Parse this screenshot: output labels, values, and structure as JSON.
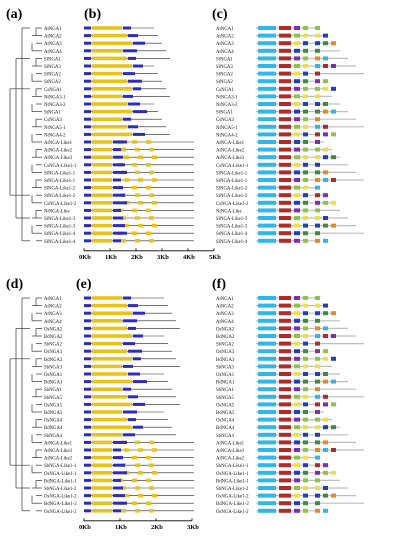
{
  "panel_labels": {
    "a": "(a)",
    "b": "(b)",
    "c": "(c)",
    "d": "(d)",
    "e": "(e)",
    "f": "(f)"
  },
  "colors": {
    "exon": "#e8c419",
    "utr": "#2c2cc4",
    "intron": "#222222",
    "tree": "#333333",
    "protein_bar": "#bdbdbd",
    "motifs": [
      "#2eb7e8",
      "#b02a2a",
      "#7a2fb5",
      "#8cc63f",
      "#f0e13a",
      "#1f3fbf",
      "#3c8c3c",
      "#e58a1f"
    ]
  },
  "top": {
    "genes": [
      "AtNGA1",
      "AtNGA2",
      "AtNGA3",
      "AtNGA4",
      "SlNGA1",
      "SlNGA3",
      "SlNGA2",
      "StNGA2",
      "CsNGA1",
      "NtNGA3-1",
      "NtNGA3-2",
      "StNGA1",
      "CsNGA3",
      "NtNGA5-1",
      "NtNGA4-2",
      "AtNGA-Like1",
      "AtNGA-Like2",
      "AtNGA-Like3",
      "CsNGA-Like1-1",
      "SlNGA-Like1-1",
      "StNGA-Like1-1",
      "SlNGA-Like1-2",
      "StNGA-Like1-2",
      "CsNGA-Like1-2",
      "NtNGA-Like",
      "SlNGA-Like1-3",
      "StNGA-Like1-3",
      "StNGA-Like1-4",
      "SlNGA-Like1-4"
    ],
    "axis_ticks": [
      "0Kb",
      "1Kb",
      "2Kb",
      "3Kb",
      "4Kb",
      "5Kb"
    ]
  },
  "bottom": {
    "genes": [
      "AtNGA1",
      "AtNGA2",
      "AtNGA3",
      "AtNGA4",
      "OsNGA2",
      "BdNGA2",
      "SbNGA2",
      "OsNGA3",
      "BdNGA3",
      "SbNGA3",
      "OsNGA1",
      "BdNGA1",
      "SbNGA1",
      "SbNGA5",
      "OsNGA5",
      "BdNGA5",
      "OsNGA4",
      "BdNGA4",
      "SbNGA4",
      "AtNGA-Like1",
      "AtNGA-Like3",
      "AtNGA-Like2",
      "SbNGA-Like1-1",
      "OsNGA-Like1-1",
      "BdNGA-Like1-1",
      "SbNGA-Like1-2",
      "OsNGA-Like1-2",
      "BdNGA-Like1-2",
      "OsNGA-Like1-2"
    ],
    "axis_ticks": [
      "0Kb",
      "1Kb",
      "2Kb",
      "3Kb"
    ]
  }
}
